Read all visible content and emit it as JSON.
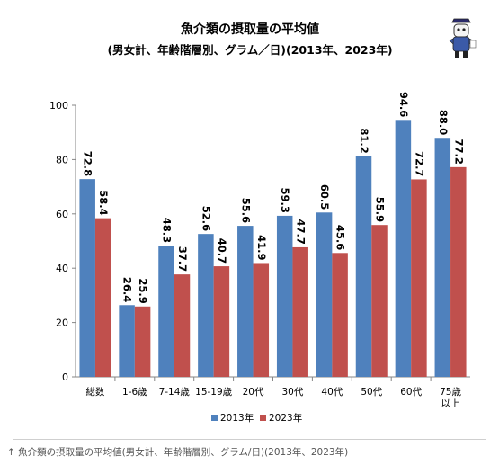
{
  "caption": "↑ 魚介類の摂取量の平均値(男女計、年齢階層別、グラム/日)(2013年、2023年)",
  "chart_data": {
    "type": "bar",
    "title": "魚介類の摂取量の平均値",
    "subtitle": "(男女計、年齢階層別、グラム／日)(2013年、2023年)",
    "categories": [
      "総数",
      "1-6歳",
      "7-14歳",
      "15-19歳",
      "20代",
      "30代",
      "40代",
      "50代",
      "60代",
      "75歳\n以上"
    ],
    "series": [
      {
        "name": "2013年",
        "color": "#4f81bd",
        "values": [
          72.8,
          26.4,
          48.3,
          52.6,
          55.6,
          59.3,
          60.5,
          81.2,
          94.6,
          88.0
        ]
      },
      {
        "name": "2023年",
        "color": "#c0504d",
        "values": [
          58.4,
          25.9,
          37.7,
          40.7,
          41.9,
          47.7,
          45.6,
          55.9,
          72.7,
          77.2
        ]
      }
    ],
    "yticks": [
      0,
      20,
      40,
      60,
      80,
      100
    ],
    "ylim": [
      0,
      100
    ],
    "grid": false,
    "legend": "bottom",
    "xlabel": "",
    "ylabel": ""
  }
}
